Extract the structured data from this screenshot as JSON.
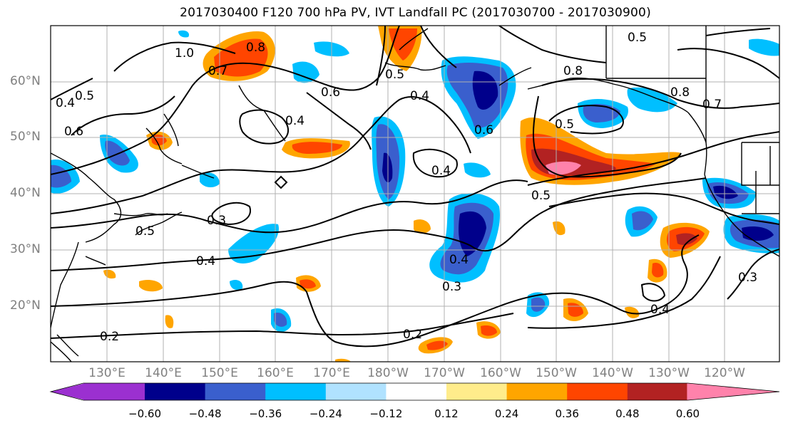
{
  "title": "2017030400 F120 700 hPa PV, IVT Landfall PC (2017030700 - 2017030900)",
  "lat_labels": [
    "60°N",
    "50°N",
    "40°N",
    "30°N",
    "20°N"
  ],
  "lon_labels": [
    "130°E",
    "140°E",
    "150°E",
    "160°E",
    "170°E",
    "180°W",
    "170°W",
    "160°W",
    "150°W",
    "140°W",
    "130°W",
    "120°W"
  ],
  "contour_labels": [
    "1.0",
    "0.8",
    "0.7",
    "0.6",
    "0.5",
    "0.4",
    "0.6",
    "0.4",
    "0.5",
    "0.4",
    "0.3",
    "0.4",
    "0.2",
    "0.2",
    "0.3",
    "0.4",
    "0.5",
    "0.5",
    "0.5",
    "0.8",
    "0.7",
    "0.6",
    "0.4",
    "0.3",
    "0.8",
    "0.5",
    "0.4"
  ],
  "colorbar": {
    "ticks": [
      "−0.60",
      "−0.48",
      "−0.36",
      "−0.24",
      "−0.12",
      "0.12",
      "0.24",
      "0.36",
      "0.48",
      "0.60"
    ],
    "colors": [
      "#9b30d0",
      "#00008b",
      "#3a5fcd",
      "#00bfff",
      "#b0e2ff",
      "#ffffff",
      "#ffec8b",
      "#ffa500",
      "#ff4500",
      "#b22222",
      "#ff82ab"
    ]
  }
}
